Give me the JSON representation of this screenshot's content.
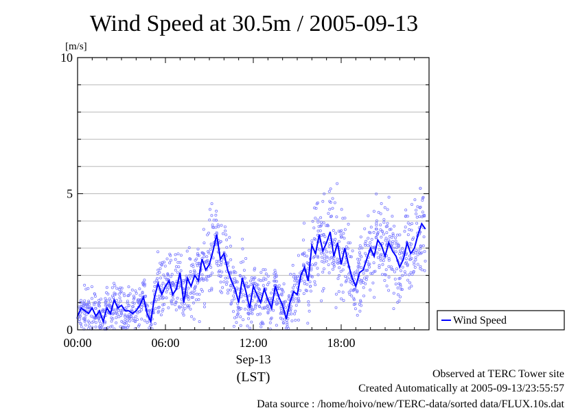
{
  "chart_data": {
    "type": "line",
    "title": "Wind Speed at 30.5m / 2005-09-13",
    "ylabel": "[m/s]",
    "ylim": [
      0,
      10
    ],
    "y_ticks": [
      0,
      5,
      10
    ],
    "x_ticks": [
      "00:00",
      "06:00",
      "12:00",
      "18:00"
    ],
    "x_tick_hours": [
      0,
      6,
      12,
      18
    ],
    "xlim_hours": [
      0,
      24
    ],
    "date_label": "Sep-13",
    "time_zone_label": "(LST)",
    "grid": "horizontal",
    "legend_position": "right",
    "series": [
      {
        "name": "Wind Speed",
        "color": "#0000ff",
        "hours": [
          0,
          0.25,
          0.5,
          0.75,
          1,
          1.25,
          1.5,
          1.75,
          2,
          2.25,
          2.5,
          2.75,
          3,
          3.25,
          3.5,
          3.75,
          4,
          4.25,
          4.5,
          4.75,
          5,
          5.25,
          5.5,
          5.75,
          6,
          6.25,
          6.5,
          6.75,
          7,
          7.25,
          7.5,
          7.75,
          8,
          8.25,
          8.5,
          8.75,
          9,
          9.25,
          9.5,
          9.75,
          10,
          10.25,
          10.5,
          10.75,
          11,
          11.25,
          11.5,
          11.75,
          12,
          12.25,
          12.5,
          12.75,
          13,
          13.25,
          13.5,
          13.75,
          14,
          14.25,
          14.5,
          14.75,
          15,
          15.25,
          15.5,
          15.75,
          16,
          16.25,
          16.5,
          16.75,
          17,
          17.25,
          17.5,
          17.75,
          18,
          18.25,
          18.5,
          18.75,
          19,
          19.25,
          19.5,
          19.75,
          20,
          20.25,
          20.5,
          20.75,
          21,
          21.25,
          21.5,
          21.75,
          22,
          22.25,
          22.5,
          22.75,
          23,
          23.25,
          23.5,
          23.75
        ],
        "values": [
          0.5,
          0.8,
          0.7,
          0.6,
          0.8,
          0.5,
          0.7,
          0.3,
          0.8,
          0.6,
          1.1,
          0.8,
          0.9,
          0.7,
          0.7,
          0.6,
          0.7,
          0.9,
          1.2,
          0.6,
          0.3,
          1.2,
          1.7,
          1.3,
          1.6,
          1.8,
          1.3,
          1.5,
          2.1,
          1.0,
          1.9,
          1.6,
          2.0,
          1.8,
          2.6,
          2.2,
          2.4,
          2.9,
          3.5,
          2.6,
          2.8,
          2.2,
          1.8,
          1.5,
          1.0,
          1.9,
          1.4,
          0.8,
          1.6,
          1.3,
          1.0,
          1.5,
          1.1,
          0.8,
          1.6,
          1.2,
          0.9,
          0.4,
          1.0,
          1.4,
          1.3,
          2.0,
          2.3,
          1.8,
          3.1,
          2.8,
          3.5,
          2.9,
          3.2,
          3.6,
          2.7,
          3.2,
          2.4,
          3.0,
          2.4,
          1.9,
          1.6,
          2.1,
          2.2,
          2.6,
          3.0,
          2.7,
          3.3,
          3.1,
          2.7,
          3.2,
          2.9,
          2.7,
          2.3,
          2.6,
          3.2,
          2.8,
          3.0,
          3.5,
          3.9,
          3.7
        ]
      }
    ]
  },
  "footer": {
    "line1": "Observed at TERC Tower site",
    "line2": "Created Automatically at 2005-09-13/23:55:57",
    "line3": "Data source : /home/hoivo/new/TERC-data/sorted  data/FLUX.10s.dat"
  }
}
